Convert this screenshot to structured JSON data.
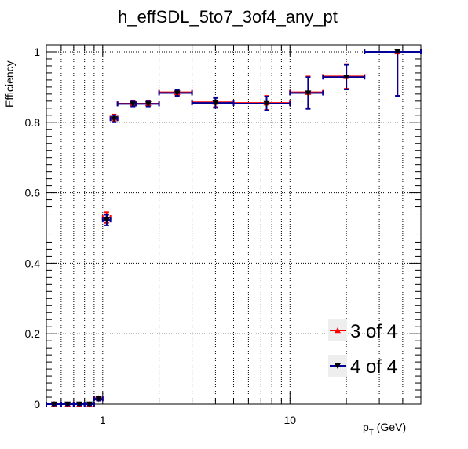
{
  "chart_data": {
    "type": "scatter",
    "title": "h_effSDL_5to7_3of4_any_pt",
    "ylabel": "Efficiency",
    "xlabel_main": "p",
    "xlabel_sub": "T",
    "xlabel_unit": " (GeV)",
    "xscale": "log",
    "xlim": [
      0.5,
      50
    ],
    "ylim": [
      0,
      1.02
    ],
    "grid": true,
    "legend_position": "bottom-right",
    "x_tick_labels": [
      {
        "value": 1,
        "label": "1"
      },
      {
        "value": 10,
        "label": "10"
      }
    ],
    "y_tick_labels": [
      {
        "value": 0,
        "label": "0"
      },
      {
        "value": 0.2,
        "label": "0.2"
      },
      {
        "value": 0.4,
        "label": "0.4"
      },
      {
        "value": 0.6,
        "label": "0.6"
      },
      {
        "value": 0.8,
        "label": "0.8"
      },
      {
        "value": 1,
        "label": "1"
      }
    ],
    "series": [
      {
        "name": "3 of 4",
        "color": "#ff0000",
        "marker": "triangle-up",
        "points": [
          {
            "x": 0.55,
            "xlo": 0.5,
            "xhi": 0.6,
            "y": 0.0,
            "yerr": 0.003
          },
          {
            "x": 0.65,
            "xlo": 0.6,
            "xhi": 0.7,
            "y": 0.0,
            "yerr": 0.003
          },
          {
            "x": 0.75,
            "xlo": 0.7,
            "xhi": 0.8,
            "y": 0.0,
            "yerr": 0.003
          },
          {
            "x": 0.85,
            "xlo": 0.8,
            "xhi": 0.9,
            "y": 0.0,
            "yerr": 0.003
          },
          {
            "x": 0.95,
            "xlo": 0.9,
            "xhi": 1.0,
            "y": 0.017,
            "yerr": 0.005
          },
          {
            "x": 1.05,
            "xlo": 1.0,
            "xhi": 1.1,
            "y": 0.53,
            "yerr": 0.015
          },
          {
            "x": 1.15,
            "xlo": 1.1,
            "xhi": 1.2,
            "y": 0.812,
            "yerr": 0.01
          },
          {
            "x": 1.45,
            "xlo": 1.2,
            "xhi": 1.5,
            "y": 0.853,
            "yerr": 0.007
          },
          {
            "x": 1.75,
            "xlo": 1.5,
            "xhi": 2.0,
            "y": 0.853,
            "yerr": 0.007
          },
          {
            "x": 2.5,
            "xlo": 2.0,
            "xhi": 3.0,
            "y": 0.885,
            "yerr": 0.008
          },
          {
            "x": 4.0,
            "xlo": 3.0,
            "xhi": 5.0,
            "y": 0.857,
            "yerr": 0.014
          },
          {
            "x": 7.5,
            "xlo": 5.0,
            "xhi": 10.0,
            "y": 0.855,
            "yerr": 0.02
          },
          {
            "x": 12.5,
            "xlo": 10.0,
            "xhi": 15.0,
            "y": 0.885,
            "yerr": 0.045
          },
          {
            "x": 20.0,
            "xlo": 15.0,
            "xhi": 25.0,
            "y": 0.93,
            "yerr": 0.035
          },
          {
            "x": 37.5,
            "xlo": 25.0,
            "xhi": 50.0,
            "y": 1.0,
            "yerr_lo": 0.125,
            "yerr_hi": 0.0
          }
        ]
      },
      {
        "name": "4 of 4",
        "color": "#000099",
        "marker": "triangle-down",
        "points": [
          {
            "x": 0.55,
            "xlo": 0.5,
            "xhi": 0.6,
            "y": 0.0,
            "yerr": 0.003
          },
          {
            "x": 0.65,
            "xlo": 0.6,
            "xhi": 0.7,
            "y": 0.0,
            "yerr": 0.003
          },
          {
            "x": 0.75,
            "xlo": 0.7,
            "xhi": 0.8,
            "y": 0.0,
            "yerr": 0.003
          },
          {
            "x": 0.85,
            "xlo": 0.8,
            "xhi": 0.9,
            "y": 0.0,
            "yerr": 0.003
          },
          {
            "x": 0.95,
            "xlo": 0.9,
            "xhi": 1.0,
            "y": 0.015,
            "yerr": 0.005
          },
          {
            "x": 1.05,
            "xlo": 1.0,
            "xhi": 1.1,
            "y": 0.523,
            "yerr": 0.015
          },
          {
            "x": 1.15,
            "xlo": 1.1,
            "xhi": 1.2,
            "y": 0.81,
            "yerr": 0.01
          },
          {
            "x": 1.45,
            "xlo": 1.2,
            "xhi": 1.5,
            "y": 0.852,
            "yerr": 0.007
          },
          {
            "x": 1.75,
            "xlo": 1.5,
            "xhi": 2.0,
            "y": 0.852,
            "yerr": 0.007
          },
          {
            "x": 2.5,
            "xlo": 2.0,
            "xhi": 3.0,
            "y": 0.883,
            "yerr": 0.008
          },
          {
            "x": 4.0,
            "xlo": 3.0,
            "xhi": 5.0,
            "y": 0.855,
            "yerr": 0.014
          },
          {
            "x": 7.5,
            "xlo": 5.0,
            "xhi": 10.0,
            "y": 0.853,
            "yerr": 0.02
          },
          {
            "x": 12.5,
            "xlo": 10.0,
            "xhi": 15.0,
            "y": 0.883,
            "yerr": 0.045
          },
          {
            "x": 20.0,
            "xlo": 15.0,
            "xhi": 25.0,
            "y": 0.928,
            "yerr": 0.035
          },
          {
            "x": 37.5,
            "xlo": 25.0,
            "xhi": 50.0,
            "y": 1.0,
            "yerr_lo": 0.125,
            "yerr_hi": 0.0
          }
        ]
      }
    ]
  }
}
